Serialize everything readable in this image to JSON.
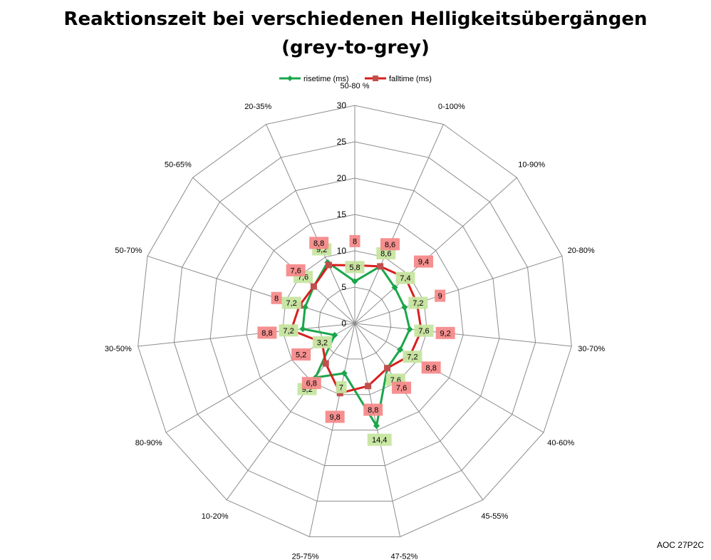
{
  "page": {
    "title_line1": "Reaktionszeit bei verschiedenen Helligkeitsübergängen",
    "title_line2": "(grey-to-grey)",
    "footnote": "AOC 27P2C"
  },
  "chart_data": {
    "type": "radar",
    "title": "Reaktionszeit bei verschiedenen Helligkeitsübergängen (grey-to-grey)",
    "categories": [
      "50-80 %",
      "0-100%",
      "10-90%",
      "20-80%",
      "30-70%",
      "40-60%",
      "45-55%",
      "47-52%",
      "25-75%",
      "10-20%",
      "80-90%",
      "30-50%",
      "50-70%",
      "50-65%",
      "20-35%"
    ],
    "series": [
      {
        "name": "risetime (ms)",
        "color": "#1aa64a",
        "marker": "diamond",
        "label_bg": "#c6e5a0",
        "values": [
          5.8,
          8.6,
          7.4,
          7.2,
          7.6,
          7.2,
          7.6,
          14.4,
          7,
          9.2,
          3.2,
          7.2,
          7.2,
          7.6,
          9.2
        ],
        "labels": [
          "5,8",
          "8,6",
          "7,4",
          "7,2",
          "7,6",
          "7,2",
          "7,6",
          "14,4",
          "7",
          "9,2",
          "3,2",
          "7,2",
          "7,2",
          "7,6",
          "9,2"
        ]
      },
      {
        "name": "falltime (ms)",
        "color": "#d81e1e",
        "marker": "square",
        "label_bg": "#f58a8a",
        "values": [
          8,
          8.6,
          9.4,
          9,
          9.2,
          8.8,
          7.6,
          8.8,
          9.8,
          6.8,
          5.2,
          8.8,
          8,
          7.6,
          8.8
        ],
        "labels": [
          "8",
          "8,6",
          "9,4",
          "9",
          "9,2",
          "8,8",
          "7,6",
          "8,8",
          "9,8",
          "6,8",
          "5,2",
          "8,8",
          "8",
          "7,6",
          "8,8"
        ]
      }
    ],
    "radial_axis": {
      "min": 0,
      "max": 30,
      "step": 5,
      "ticks": [
        "0",
        "5",
        "10",
        "15",
        "20",
        "25",
        "30"
      ]
    },
    "grid": true,
    "legend_position": "top"
  }
}
